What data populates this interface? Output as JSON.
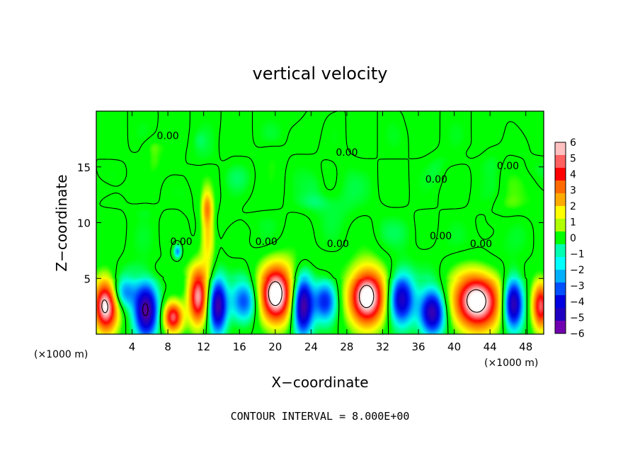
{
  "chart_data": {
    "type": "heatmap",
    "title": "vertical velocity",
    "xlabel": "X−coordinate",
    "ylabel": "Z−coordinate",
    "x_units": "(×1000 m)",
    "y_units": "(×1000 m)",
    "xlim": [
      0,
      50
    ],
    "ylim": [
      0,
      20
    ],
    "x_ticks": [
      4,
      8,
      12,
      16,
      20,
      24,
      28,
      32,
      36,
      40,
      44,
      48
    ],
    "y_ticks": [
      5,
      10,
      15
    ],
    "colorbar": {
      "min": -6,
      "max": 6,
      "labels": [
        "6",
        "5",
        "4",
        "3",
        "2",
        "1",
        "0",
        "−1",
        "−2",
        "−3",
        "−4",
        "−5",
        "−6"
      ],
      "colors": [
        "#ffc0c0",
        "#ff6060",
        "#ff0000",
        "#ff6a00",
        "#ffaa00",
        "#ffff00",
        "#b0ff00",
        "#00ff00",
        "#00ffb0",
        "#00ffff",
        "#00b0ff",
        "#0050ff",
        "#0000e0",
        "#2000c0",
        "#7000b0"
      ]
    },
    "contour_interval_text": "CONTOUR INTERVAL = 8.000E+00",
    "contour_labels": [
      {
        "text": "0.00",
        "x": 8.0,
        "z": 17.5
      },
      {
        "text": "0.00",
        "x": 28.0,
        "z": 16.0
      },
      {
        "text": "0.00",
        "x": 46.0,
        "z": 14.8
      },
      {
        "text": "0.00",
        "x": 38.0,
        "z": 13.6
      },
      {
        "text": "0.00",
        "x": 19.0,
        "z": 8.0
      },
      {
        "text": "0.00",
        "x": 27.0,
        "z": 7.8
      },
      {
        "text": "0.00",
        "x": 9.5,
        "z": 8.0
      },
      {
        "text": "0.00",
        "x": 38.5,
        "z": 8.5
      },
      {
        "text": "0.00",
        "x": 43.0,
        "z": 7.8
      }
    ],
    "updrafts": [
      {
        "x": 1.0,
        "z": 2.6,
        "amp": 7.0,
        "wx": 1.4,
        "wz": 2.4
      },
      {
        "x": 8.5,
        "z": 1.6,
        "amp": 5.5,
        "wx": 1.1,
        "wz": 1.4
      },
      {
        "x": 11.3,
        "z": 3.4,
        "amp": 6.0,
        "wx": 1.1,
        "wz": 2.6
      },
      {
        "x": 20.0,
        "z": 3.6,
        "amp": 7.5,
        "wx": 1.9,
        "wz": 2.6
      },
      {
        "x": 30.2,
        "z": 3.4,
        "amp": 7.5,
        "wx": 2.1,
        "wz": 2.6
      },
      {
        "x": 42.5,
        "z": 3.0,
        "amp": 7.5,
        "wx": 2.7,
        "wz": 2.6
      },
      {
        "x": 49.6,
        "z": 2.6,
        "amp": 5.5,
        "wx": 1.0,
        "wz": 2.2
      },
      {
        "x": 12.4,
        "z": 9.0,
        "amp": 2.8,
        "wx": 0.8,
        "wz": 3.0
      },
      {
        "x": 12.3,
        "z": 11.5,
        "amp": 2.2,
        "wx": 0.6,
        "wz": 1.5
      }
    ],
    "downdrafts": [
      {
        "x": 5.5,
        "z": 2.2,
        "amp": -6.5,
        "wx": 1.3,
        "wz": 2.4
      },
      {
        "x": 3.0,
        "z": 3.8,
        "amp": -3.0,
        "wx": 1.4,
        "wz": 1.4
      },
      {
        "x": 13.5,
        "z": 2.6,
        "amp": -6.0,
        "wx": 1.0,
        "wz": 2.4
      },
      {
        "x": 16.5,
        "z": 3.0,
        "amp": -3.5,
        "wx": 1.5,
        "wz": 1.8
      },
      {
        "x": 23.0,
        "z": 2.6,
        "amp": -6.5,
        "wx": 1.1,
        "wz": 2.6
      },
      {
        "x": 25.5,
        "z": 3.0,
        "amp": -4.0,
        "wx": 1.3,
        "wz": 1.8
      },
      {
        "x": 34.0,
        "z": 3.2,
        "amp": -5.5,
        "wx": 1.4,
        "wz": 2.2
      },
      {
        "x": 37.5,
        "z": 2.0,
        "amp": -6.0,
        "wx": 1.4,
        "wz": 2.0
      },
      {
        "x": 46.5,
        "z": 2.8,
        "amp": -6.5,
        "wx": 1.1,
        "wz": 2.2
      },
      {
        "x": 9.0,
        "z": 7.5,
        "amp": -3.0,
        "wx": 0.4,
        "wz": 0.6
      }
    ]
  }
}
